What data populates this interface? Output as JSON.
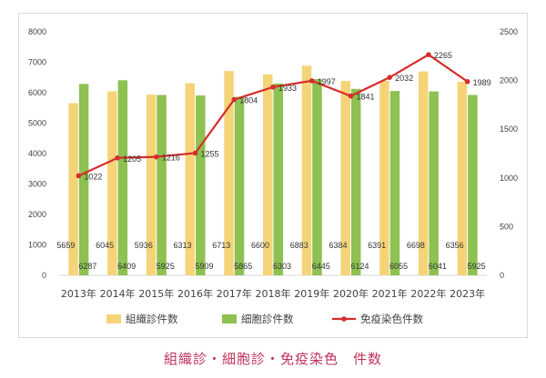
{
  "caption": "組織診・細胞診・免疫染色　件数",
  "colors": {
    "series_a": "#f5d479",
    "series_b": "#8dc152",
    "series_c": "#d62c2c"
  },
  "chart_data": {
    "type": "bar",
    "categories": [
      "2013年",
      "2014年",
      "2015年",
      "2016年",
      "2017年",
      "2018年",
      "2019年",
      "2020年",
      "2021年",
      "2022年",
      "2023年"
    ],
    "series": [
      {
        "name": "組織診件数",
        "type": "bar",
        "axis": "left",
        "values": [
          5659,
          6045,
          5936,
          6313,
          6713,
          6600,
          6883,
          6384,
          6391,
          6698,
          6356
        ]
      },
      {
        "name": "細胞診件数",
        "type": "bar",
        "axis": "left",
        "values": [
          6287,
          6409,
          5925,
          5909,
          5865,
          6303,
          6445,
          6124,
          6055,
          6041,
          5925
        ]
      },
      {
        "name": "免疫染色件数",
        "type": "line",
        "axis": "right",
        "values": [
          1022,
          1205,
          1216,
          1255,
          1804,
          1933,
          1997,
          1841,
          2032,
          2265,
          1989
        ]
      }
    ],
    "left_axis": {
      "ylim": [
        0,
        8000
      ],
      "ticks": [
        "0",
        "1000",
        "2000",
        "3000",
        "4000",
        "5000",
        "6000",
        "7000",
        "8000"
      ]
    },
    "right_axis": {
      "ylim": [
        0,
        2500
      ],
      "ticks": [
        "0",
        "500",
        "1000",
        "1500",
        "2000",
        "2500"
      ]
    },
    "grid": false,
    "legend_position": "bottom"
  }
}
